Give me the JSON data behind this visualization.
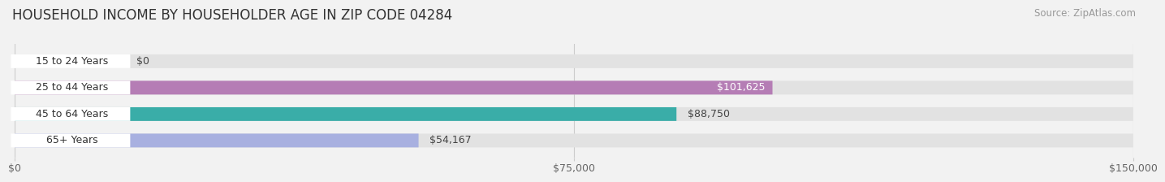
{
  "title": "HOUSEHOLD INCOME BY HOUSEHOLDER AGE IN ZIP CODE 04284",
  "source": "Source: ZipAtlas.com",
  "categories": [
    "15 to 24 Years",
    "25 to 44 Years",
    "45 to 64 Years",
    "65+ Years"
  ],
  "values": [
    0,
    101625,
    88750,
    54167
  ],
  "labels": [
    "$0",
    "$101,625",
    "$88,750",
    "$54,167"
  ],
  "bar_colors": [
    "#a8c4e0",
    "#b57db5",
    "#3aada8",
    "#a8b0e0"
  ],
  "background_color": "#f2f2f2",
  "bar_bg_color": "#e2e2e2",
  "label_bg_color": "#ffffff",
  "xlim": [
    0,
    150000
  ],
  "xticks": [
    0,
    75000,
    150000
  ],
  "xticklabels": [
    "$0",
    "$75,000",
    "$150,000"
  ],
  "title_fontsize": 12,
  "source_fontsize": 8.5,
  "bar_label_fontsize": 9,
  "value_label_fontsize": 9,
  "bar_height": 0.52,
  "value_label_inside_color": "#ffffff",
  "value_label_outside_color": "#444444",
  "inside_threshold": 95000,
  "category_text_color": "#333333",
  "tick_label_color": "#666666",
  "gridline_color": "#cccccc"
}
